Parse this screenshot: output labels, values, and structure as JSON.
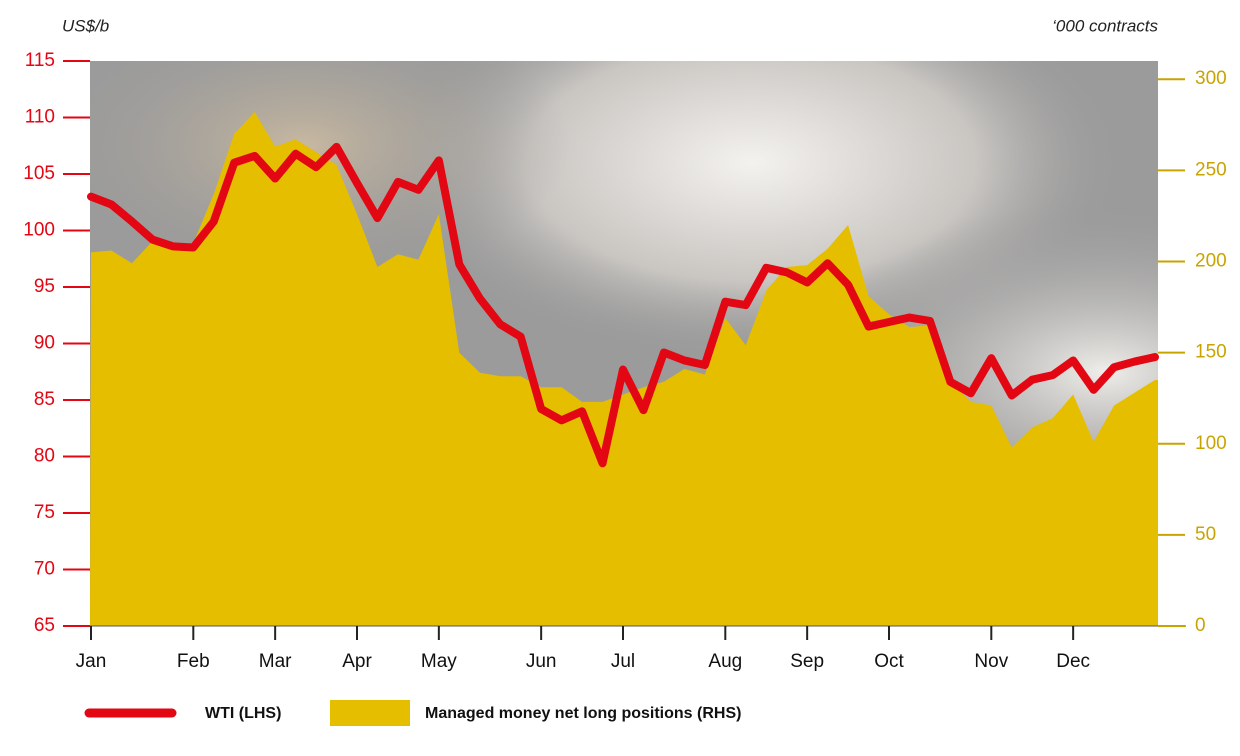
{
  "chart_data": {
    "type": "combo",
    "y_label": "US$/b",
    "y2_label": "‘000 contracts",
    "categories": [
      "Jan",
      null,
      null,
      null,
      null,
      "Feb",
      null,
      null,
      null,
      "Mar",
      null,
      null,
      null,
      "Apr",
      null,
      null,
      null,
      "May",
      null,
      null,
      null,
      null,
      "Jun",
      null,
      null,
      null,
      "Jul",
      null,
      null,
      null,
      null,
      "Aug",
      null,
      null,
      null,
      "Sep",
      null,
      null,
      null,
      "Oct",
      null,
      null,
      null,
      null,
      "Nov",
      null,
      null,
      null,
      "Dec",
      null,
      null,
      null,
      null
    ],
    "series": [
      {
        "name": "Managed money net long positions (RHS)",
        "style": "area",
        "axis": "y2",
        "color": "#e5be00",
        "values": [
          205,
          206,
          199,
          211,
          209,
          210,
          237,
          270,
          282,
          263,
          267,
          260,
          253,
          226,
          197,
          204,
          201,
          226,
          150,
          139,
          137,
          137,
          131,
          131,
          123,
          123,
          127,
          131,
          134,
          141,
          138,
          169,
          154,
          184,
          197,
          198,
          207,
          220,
          181,
          171,
          164,
          165,
          134,
          123,
          121,
          98,
          109,
          114,
          127,
          101,
          121,
          128,
          135
        ]
      },
      {
        "name": "WTI (LHS)",
        "style": "line",
        "axis": "y",
        "color": "#e30613",
        "values": [
          103.0,
          102.3,
          100.8,
          99.2,
          98.6,
          98.5,
          100.8,
          106.0,
          106.6,
          104.6,
          106.8,
          105.6,
          107.4,
          104.2,
          101.1,
          104.3,
          103.6,
          106.2,
          97.0,
          94.0,
          91.7,
          90.6,
          84.2,
          83.2,
          84.0,
          79.4,
          87.7,
          84.1,
          89.2,
          88.5,
          88.1,
          93.7,
          93.4,
          96.7,
          96.3,
          95.4,
          97.1,
          95.2,
          91.5,
          91.9,
          92.3,
          92.0,
          86.6,
          85.6,
          88.7,
          85.4,
          86.8,
          87.2,
          88.5,
          85.9,
          87.9,
          88.4,
          88.8
        ]
      }
    ],
    "ylim": [
      65,
      115
    ],
    "yticks": [
      65,
      70,
      75,
      80,
      85,
      90,
      95,
      100,
      105,
      110,
      115
    ],
    "y2lim": [
      0,
      310
    ],
    "y2ticks": [
      0,
      50,
      100,
      150,
      200,
      250,
      300
    ]
  }
}
